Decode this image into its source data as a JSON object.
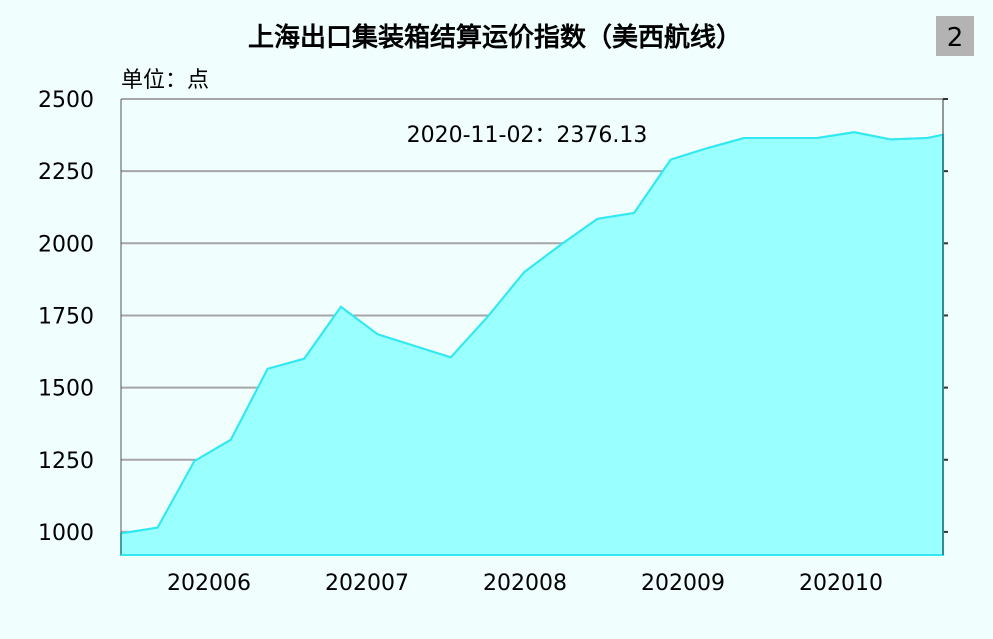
{
  "chart_data": {
    "type": "area",
    "title": "上海出口集装箱结算运价指数（美西航线）",
    "unit_label": "单位：点",
    "badge": "2",
    "annotation": "2020-11-02：2376.13",
    "xlabel": "",
    "ylabel": "",
    "x_ticks": [
      "202006",
      "202007",
      "202008",
      "202009",
      "202010"
    ],
    "y_ticks": [
      1000,
      1250,
      1500,
      1750,
      2000,
      2250,
      2500
    ],
    "ylim": [
      920,
      2500
    ],
    "grid": true,
    "colors": {
      "fill": "#99ffff",
      "line": "#33e8f0",
      "grid": "#a6a6a6",
      "background": "#f0fefe",
      "badge": "#b3b3b3"
    },
    "x": [
      "2020-05-29",
      "2020-06-05",
      "2020-06-12",
      "2020-06-19",
      "2020-06-26",
      "2020-07-03",
      "2020-07-10",
      "2020-07-17",
      "2020-07-24",
      "2020-07-31",
      "2020-08-07",
      "2020-08-14",
      "2020-08-21",
      "2020-08-28",
      "2020-09-04",
      "2020-09-11",
      "2020-09-18",
      "2020-09-25",
      "2020-10-09",
      "2020-10-16",
      "2020-10-23",
      "2020-10-30",
      "2020-11-02"
    ],
    "values": [
      995,
      1015,
      1245,
      1320,
      1565,
      1600,
      1780,
      1685,
      1645,
      1605,
      1745,
      1900,
      1995,
      2085,
      2105,
      2290,
      2330,
      2365,
      2365,
      2385,
      2360,
      2365,
      2376.13
    ]
  }
}
